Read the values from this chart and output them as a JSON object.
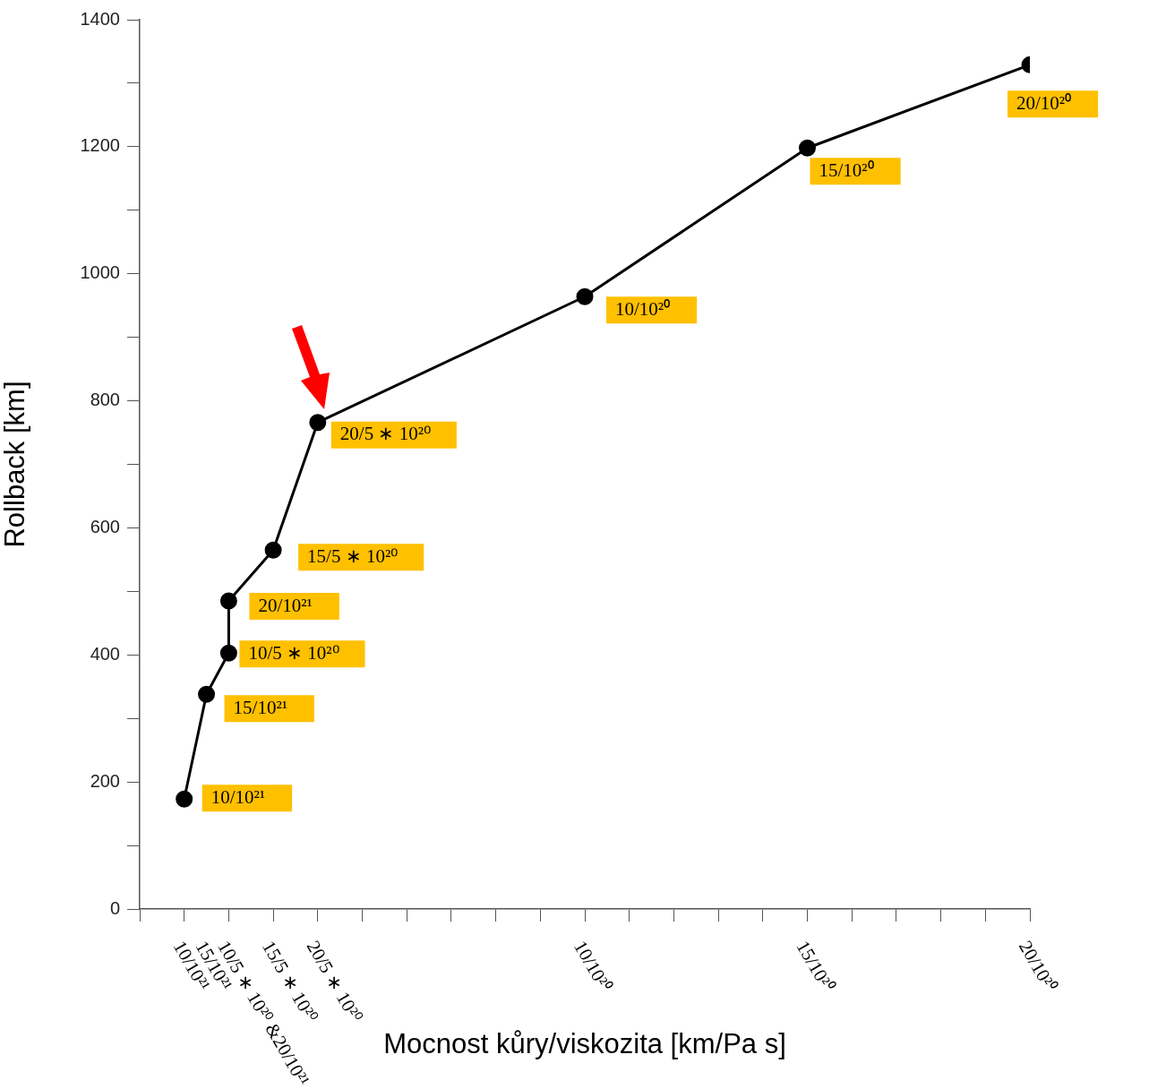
{
  "chart_data": {
    "type": "line",
    "xlabel": "Mocnost kůry/viskozita [km/Pa s]",
    "ylabel": "Rollback [km]",
    "marker": "circle",
    "categories": [
      null,
      null,
      "10/10²¹",
      "15/10²¹",
      "10/5 ∗ 10²⁰ &20/10²¹",
      null,
      "15/5 ∗ 10²⁰",
      null,
      "20/5 ∗ 10²⁰",
      null,
      null,
      null,
      null,
      null,
      null,
      null,
      null,
      null,
      null,
      null,
      "10/10²⁰",
      null,
      null,
      null,
      null,
      null,
      null,
      null,
      null,
      null,
      "15/10²⁰",
      null,
      null,
      null,
      null,
      null,
      null,
      null,
      null,
      null,
      "20/10²⁰"
    ],
    "series": [
      {
        "type": "line",
        "color": "#000000",
        "x": [
          "10/10²¹",
          "15/10²¹",
          "10/5 ∗ 10²⁰ &20/10²¹",
          "10/5 ∗ 10²⁰ &20/10²¹",
          "15/5 ∗ 10²⁰",
          "20/5 ∗ 10²⁰",
          "10/10²⁰",
          "15/10²⁰",
          "20/10²⁰"
        ],
        "values": [
          173,
          338,
          403,
          485,
          565,
          766,
          964,
          1198,
          1329
        ]
      }
    ],
    "ylim": [
      0,
      1400
    ],
    "yticks": [
      {
        "value": 0,
        "label": "0"
      },
      {
        "value": 100,
        "label": null
      },
      {
        "value": 200,
        "label": "200"
      },
      {
        "value": 300,
        "label": null
      },
      {
        "value": 400,
        "label": "400"
      },
      {
        "value": 500,
        "label": null
      },
      {
        "value": 600,
        "label": "600"
      },
      {
        "value": 700,
        "label": null
      },
      {
        "value": 800,
        "label": "800"
      },
      {
        "value": 900,
        "label": null
      },
      {
        "value": 1000,
        "label": "1000"
      },
      {
        "value": 1100,
        "label": null
      },
      {
        "value": 1200,
        "label": "1200"
      },
      {
        "value": 1300,
        "label": null
      },
      {
        "value": 1400,
        "label": "1400"
      }
    ],
    "annotations": [
      {
        "text": "10/10²¹",
        "x": "10/10²¹",
        "y": 173
      },
      {
        "text": "15/10²¹",
        "x": "15/10²¹",
        "y": 338
      },
      {
        "text": "10/5 ∗ 10²⁰",
        "x": "10/5 ∗ 10²⁰ &20/10²¹",
        "y": 403
      },
      {
        "text": "20/10²¹",
        "x": "10/5 ∗ 10²⁰ &20/10²¹",
        "y": 485
      },
      {
        "text": "15/5 ∗ 10²⁰",
        "x": "15/5 ∗ 10²⁰",
        "y": 565
      },
      {
        "text": "20/5 ∗ 10²⁰",
        "x": "20/5 ∗ 10²⁰",
        "y": 766
      },
      {
        "text": "10/10²⁰",
        "x": "10/10²⁰",
        "y": 964
      },
      {
        "text": "15/10²⁰",
        "x": "15/10²⁰",
        "y": 1198
      },
      {
        "text": "20/10²⁰",
        "x": "20/10²⁰",
        "y": 1329
      }
    ]
  }
}
